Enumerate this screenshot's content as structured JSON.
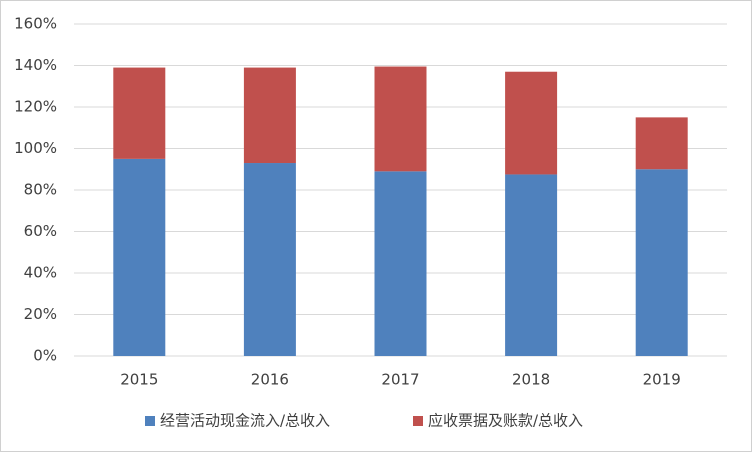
{
  "chart_data": {
    "type": "stacked_bar",
    "categories": [
      "2015",
      "2016",
      "2017",
      "2018",
      "2019"
    ],
    "series": [
      {
        "name": "经营活动现金流入/总收入",
        "color": "#4f81bd",
        "values": [
          95,
          93,
          89,
          87.5,
          90
        ]
      },
      {
        "name": "应收票据及账款/总收入",
        "color": "#c0504d",
        "values": [
          44,
          46,
          50.5,
          49.5,
          25
        ]
      }
    ],
    "ylim": [
      0,
      160
    ],
    "yticks": [
      {
        "value": 0,
        "label": "0%"
      },
      {
        "value": 20,
        "label": "20%"
      },
      {
        "value": 40,
        "label": "40%"
      },
      {
        "value": 60,
        "label": "60%"
      },
      {
        "value": 80,
        "label": "80%"
      },
      {
        "value": 100,
        "label": "100%"
      },
      {
        "value": 120,
        "label": "120%"
      },
      {
        "value": 140,
        "label": "140%"
      },
      {
        "value": 160,
        "label": "160%"
      }
    ],
    "grid": true,
    "legend": "bottom"
  }
}
